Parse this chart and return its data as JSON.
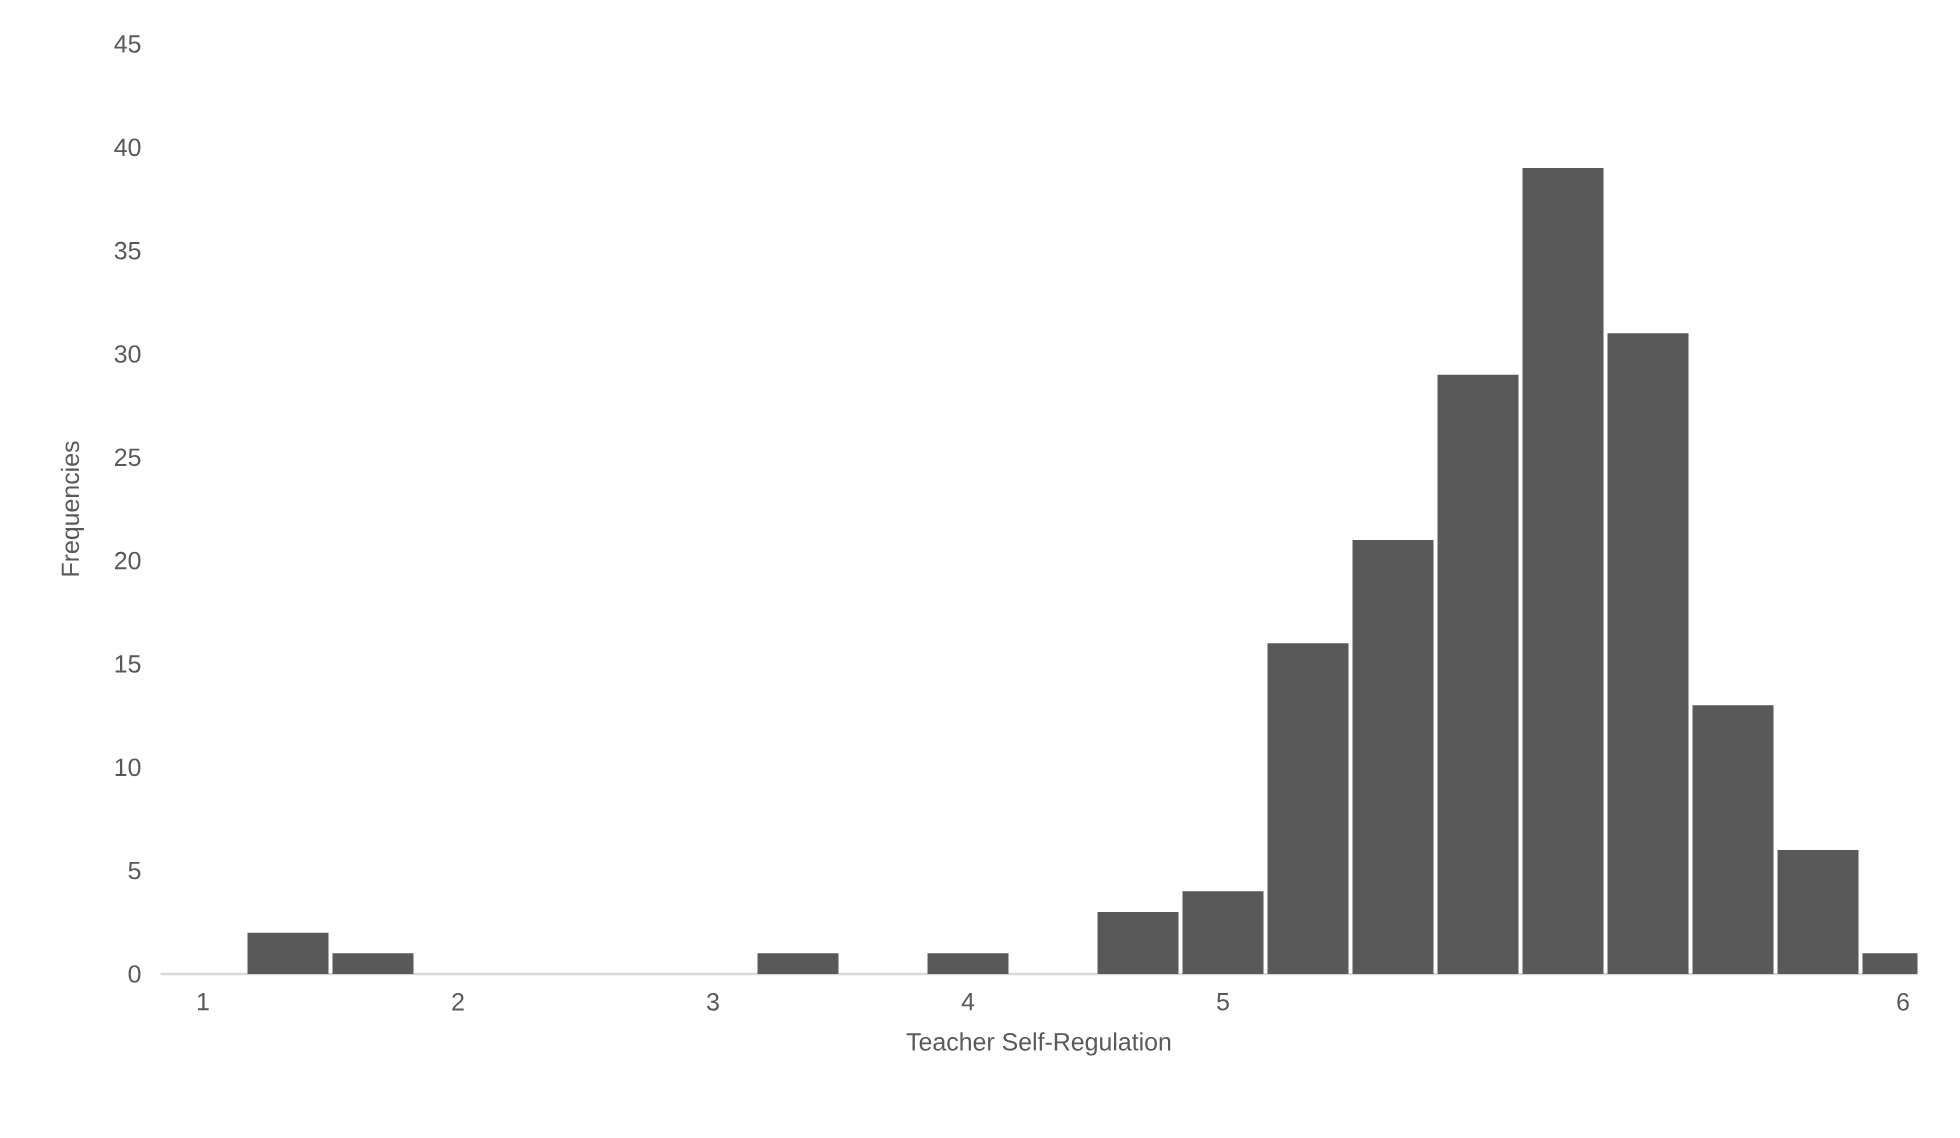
{
  "chart_data": {
    "type": "bar",
    "xlabel": "Teacher Self-Regulation",
    "ylabel": "Frequencies",
    "categories": [
      "1",
      null,
      null,
      "2",
      null,
      null,
      "3",
      null,
      null,
      "4",
      null,
      null,
      "5",
      null,
      null,
      null,
      null,
      null,
      null,
      null,
      "6"
    ],
    "values": [
      0,
      2,
      1,
      0,
      0,
      0,
      0,
      1,
      0,
      1,
      0,
      3,
      4,
      16,
      21,
      29,
      39,
      31,
      13,
      6,
      1
    ],
    "color": "#595959",
    "ylim": [
      0,
      45
    ],
    "yticks": [
      0,
      5,
      10,
      15,
      20,
      25,
      30,
      35,
      40,
      45
    ]
  }
}
